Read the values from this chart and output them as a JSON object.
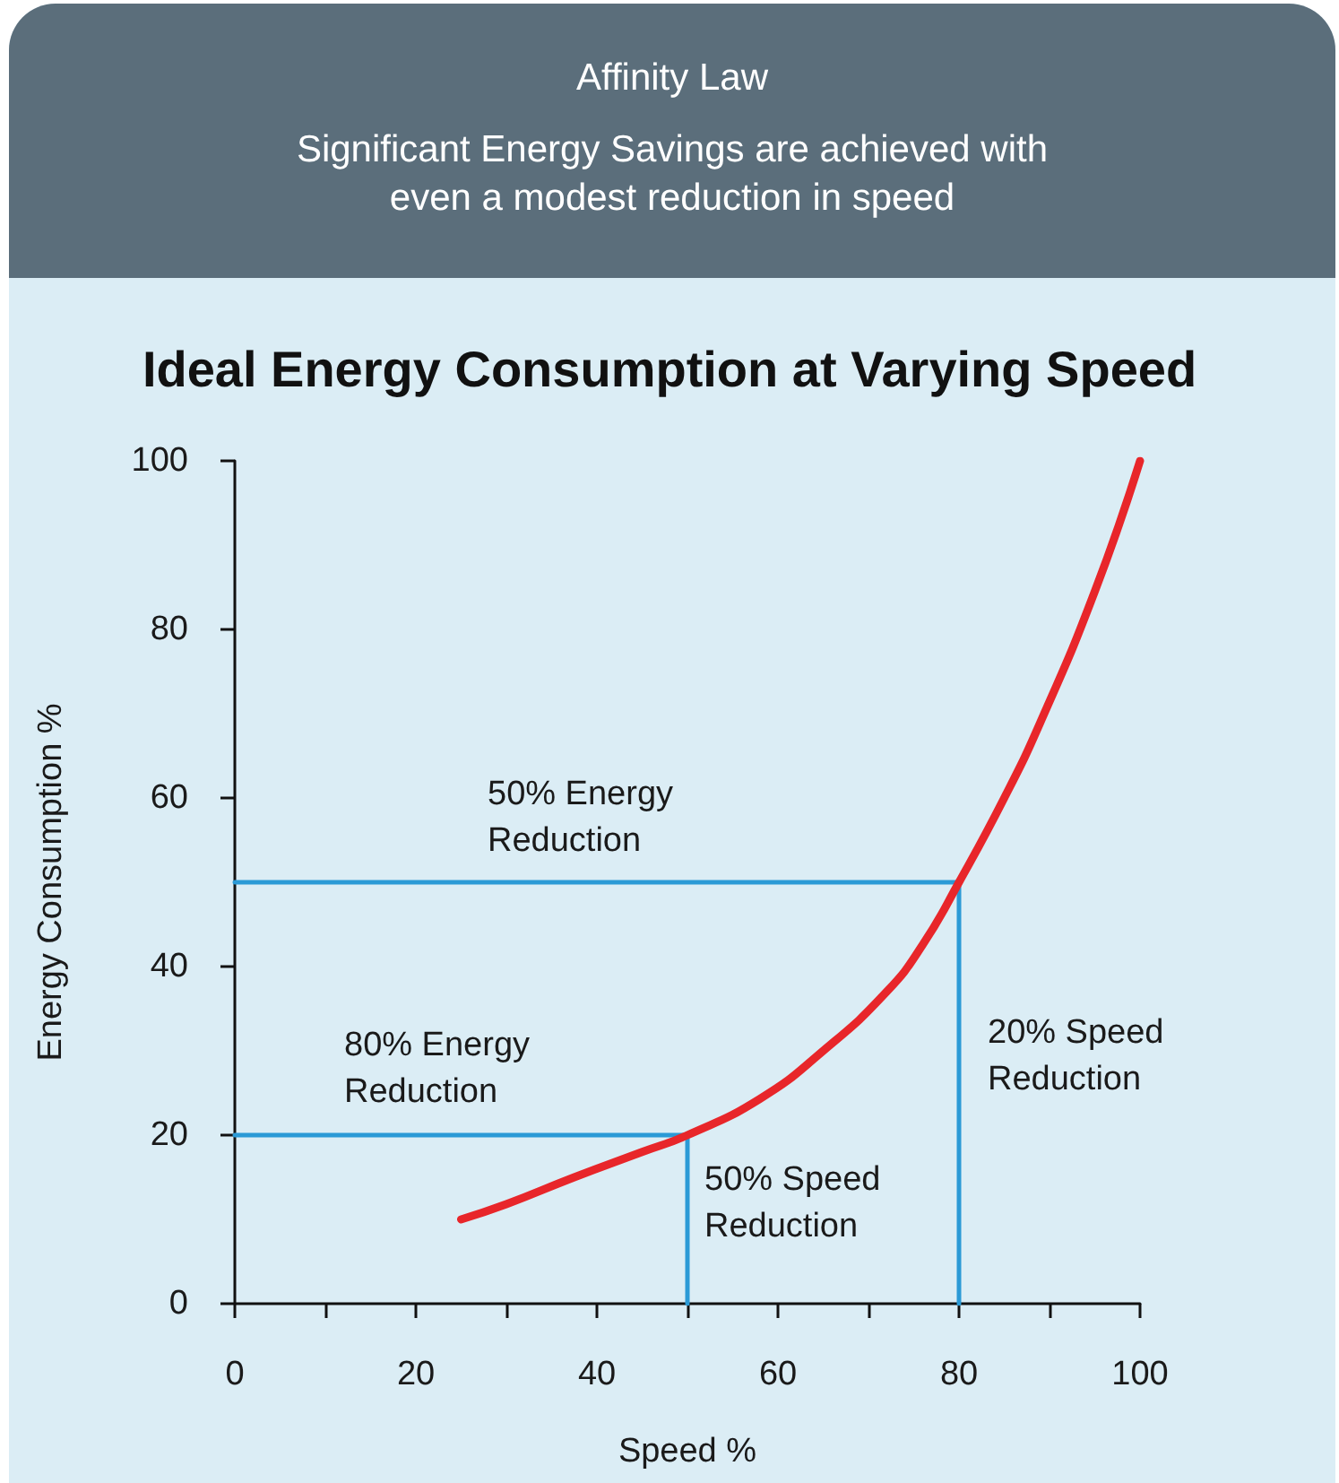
{
  "chart_data": {
    "type": "line",
    "title": "Affinity Law",
    "subtitle": "Significant Energy Savings are achieved with\neven a modest reduction in speed",
    "xlabel": "Speed %",
    "ylabel": "Energy Consumption %",
    "xlim": [
      0,
      100
    ],
    "ylim": [
      0,
      100
    ],
    "xticks": [
      0,
      {
        "value": 10,
        "label": null
      },
      20,
      {
        "value": 30,
        "label": null
      },
      40,
      {
        "value": 50,
        "label": null
      },
      60,
      {
        "value": 70,
        "label": null
      },
      80,
      {
        "value": 90,
        "label": null
      },
      100
    ],
    "yticks": [
      0,
      20,
      40,
      60,
      80,
      100
    ],
    "grid": false,
    "marker": "none",
    "line_style": "solid",
    "series": [
      {
        "color": "#e8262a",
        "x": [
          25,
          30,
          37.5,
          45,
          50,
          58,
          65,
          72,
          76,
          80,
          85,
          89,
          95,
          100
        ],
        "values": [
          10,
          11.8,
          15,
          18,
          20,
          24.3,
          30,
          37,
          42.6,
          50,
          60,
          69,
          84.5,
          100
        ]
      },
      {
        "color": "#2b9ad6",
        "x": [
          0,
          80,
          80
        ],
        "values": [
          50,
          50,
          0
        ]
      },
      {
        "color": "#2b9ad6",
        "x": [
          0,
          50,
          50
        ],
        "values": [
          20,
          20,
          0
        ]
      }
    ],
    "annotations": [
      "Ideal Energy Consumption at Varying Speed",
      "50% Energy\nReduction",
      "80% Energy\nReduction",
      "20% Speed\nReduction",
      "50% Speed\nReduction"
    ]
  }
}
